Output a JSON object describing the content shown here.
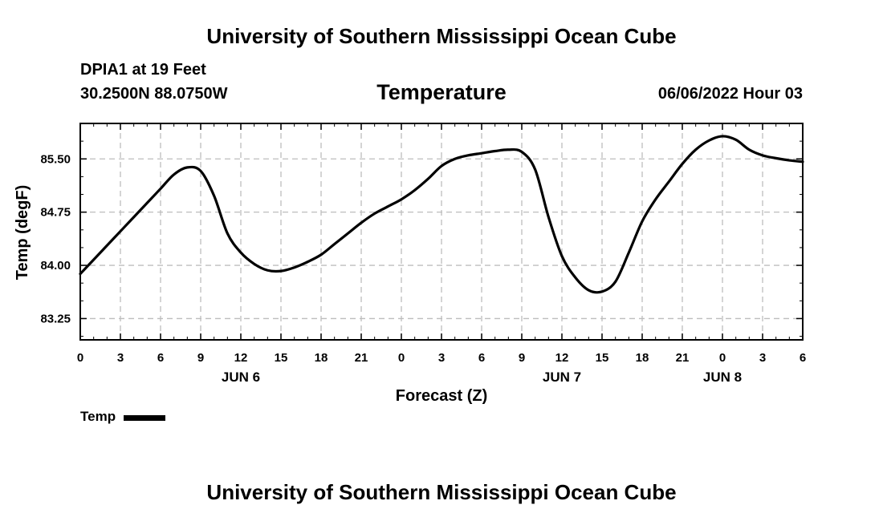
{
  "header": {
    "title": "University of Southern Mississippi Ocean Cube",
    "station": "DPIA1 at 19 Feet",
    "coords": "30.2500N  88.0750W",
    "chart_title": "Temperature",
    "issue_time": "06/06/2022 Hour 03"
  },
  "footer": {
    "title": "University of Southern Mississippi Ocean Cube"
  },
  "legend": {
    "label": "Temp"
  },
  "chart_data": {
    "type": "line",
    "title": "Temperature",
    "xlabel": "Forecast (Z)",
    "ylabel": "Temp (degF)",
    "x_range_hours": [
      0,
      54
    ],
    "ylim": [
      82.95,
      86.0
    ],
    "yticks": [
      83.25,
      84.0,
      84.75,
      85.5
    ],
    "ytick_labels": [
      "83.25",
      "84.00",
      "84.75",
      "85.50"
    ],
    "xticks_hours": [
      0,
      3,
      6,
      9,
      12,
      15,
      18,
      21,
      24,
      27,
      30,
      33,
      36,
      39,
      42,
      45,
      48,
      51,
      54
    ],
    "xtick_labels": [
      "0",
      "3",
      "6",
      "9",
      "12",
      "15",
      "18",
      "21",
      "0",
      "3",
      "6",
      "9",
      "12",
      "15",
      "18",
      "21",
      "0",
      "3",
      "6"
    ],
    "day_labels": [
      {
        "hour": 12,
        "label": "JUN 6"
      },
      {
        "hour": 36,
        "label": "JUN 7"
      },
      {
        "hour": 48,
        "label": "JUN 8"
      }
    ],
    "grid": true,
    "series": [
      {
        "name": "Temp",
        "color": "#000000",
        "x": [
          0,
          1,
          2,
          3,
          4,
          5,
          6,
          7,
          8,
          9,
          10,
          11,
          12,
          13,
          14,
          15,
          16,
          17,
          18,
          19,
          20,
          21,
          22,
          23,
          24,
          25,
          26,
          27,
          28,
          29,
          30,
          31,
          32,
          33,
          34,
          35,
          36,
          37,
          38,
          39,
          40,
          41,
          42,
          43,
          44,
          45,
          46,
          47,
          48,
          49,
          50,
          51,
          52,
          53,
          54
        ],
        "values": [
          83.88,
          84.08,
          84.28,
          84.48,
          84.68,
          84.88,
          85.08,
          85.28,
          85.38,
          85.33,
          84.98,
          84.45,
          84.18,
          84.02,
          83.93,
          83.92,
          83.97,
          84.05,
          84.15,
          84.3,
          84.45,
          84.6,
          84.73,
          84.83,
          84.93,
          85.06,
          85.22,
          85.4,
          85.5,
          85.55,
          85.58,
          85.61,
          85.63,
          85.6,
          85.35,
          84.68,
          84.13,
          83.83,
          83.65,
          83.63,
          83.77,
          84.18,
          84.62,
          84.93,
          85.18,
          85.43,
          85.63,
          85.76,
          85.82,
          85.77,
          85.63,
          85.55,
          85.51,
          85.48,
          85.46
        ]
      }
    ]
  }
}
